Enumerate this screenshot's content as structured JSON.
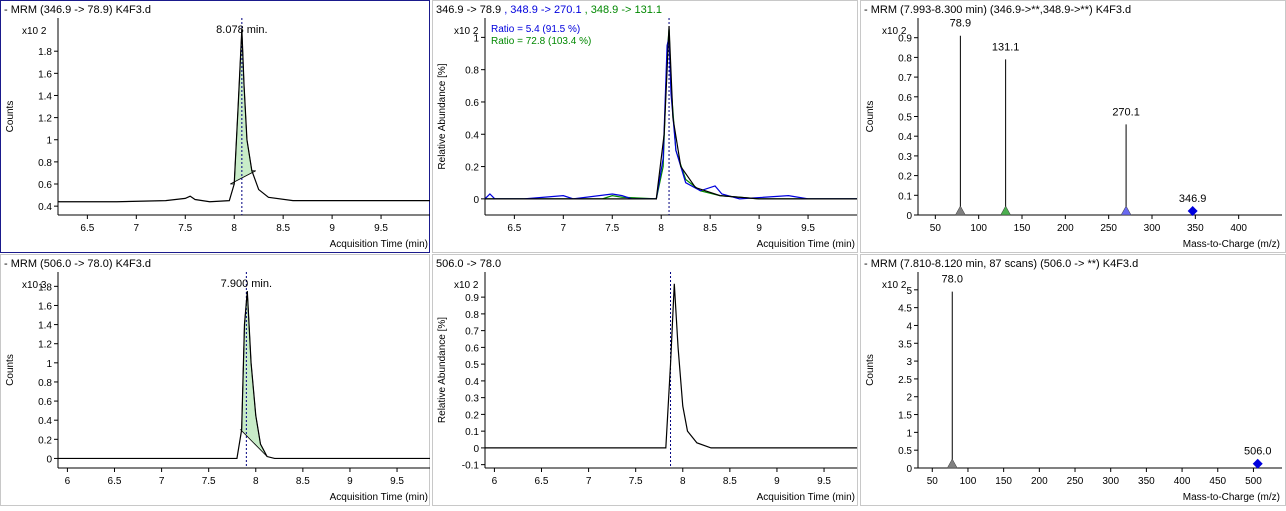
{
  "chart_data": [
    {
      "type": "line",
      "title": "- MRM (346.9 -> 78.9) K4F3.d",
      "ylabel": "Counts",
      "y_multiplier": "x10 2",
      "xlabel": "Acquisition Time (min)",
      "xlim": [
        6.2,
        10.0
      ],
      "ylim": [
        0.32,
        2.1
      ],
      "xticks": [
        "6.5",
        "7",
        "7.5",
        "8",
        "8.5",
        "9",
        "9.5"
      ],
      "yticks": [
        "0.4",
        "0.6",
        "0.8",
        "1",
        "1.2",
        "1.4",
        "1.6",
        "1.8"
      ],
      "peak_label": "8.078 min.",
      "peak_x": 8.078,
      "integrated_area": {
        "x_start": 7.96,
        "x_end": 8.22,
        "fill": "#c8ecc8"
      },
      "series": [
        {
          "color": "#000000",
          "points": [
            [
              6.2,
              0.44
            ],
            [
              6.8,
              0.44
            ],
            [
              7.3,
              0.45
            ],
            [
              7.5,
              0.47
            ],
            [
              7.55,
              0.49
            ],
            [
              7.6,
              0.46
            ],
            [
              7.75,
              0.44
            ],
            [
              7.95,
              0.45
            ],
            [
              8.0,
              0.6
            ],
            [
              8.04,
              1.3
            ],
            [
              8.078,
              2.0
            ],
            [
              8.1,
              1.5
            ],
            [
              8.13,
              1.0
            ],
            [
              8.18,
              0.72
            ],
            [
              8.25,
              0.55
            ],
            [
              8.35,
              0.48
            ],
            [
              8.6,
              0.45
            ],
            [
              9.2,
              0.45
            ],
            [
              10.0,
              0.45
            ]
          ]
        }
      ]
    },
    {
      "type": "line",
      "title_parts": [
        {
          "text": "346.9 -> 78.9",
          "color": "#000000"
        },
        {
          "text": " , 348.9 -> 270.1",
          "color": "#0000dd"
        },
        {
          "text": " , 348.9 -> 131.1",
          "color": "#008800"
        }
      ],
      "ylabel": "Relative Abundance [%]",
      "y_multiplier": "x10 2",
      "xlabel": "Acquisition Time (min)",
      "xlim": [
        6.2,
        10.0
      ],
      "ylim": [
        -0.1,
        1.12
      ],
      "xticks": [
        "6.5",
        "7",
        "7.5",
        "8",
        "8.5",
        "9",
        "9.5"
      ],
      "yticks": [
        "0",
        "0.2",
        "0.4",
        "0.6",
        "0.8",
        "1"
      ],
      "peak_x": 8.08,
      "annotations": [
        {
          "text": "Ratio = 5.4 (91.5 %)",
          "color": "#0000dd"
        },
        {
          "text": "Ratio = 72.8 (103.4 %)",
          "color": "#008800"
        }
      ],
      "series": [
        {
          "color": "#008800",
          "points": [
            [
              6.2,
              0.0
            ],
            [
              7.4,
              0.0
            ],
            [
              7.5,
              0.02
            ],
            [
              7.6,
              0.01
            ],
            [
              7.95,
              0.0
            ],
            [
              8.02,
              0.2
            ],
            [
              8.06,
              0.9
            ],
            [
              8.08,
              1.05
            ],
            [
              8.1,
              0.7
            ],
            [
              8.15,
              0.3
            ],
            [
              8.25,
              0.12
            ],
            [
              8.4,
              0.05
            ],
            [
              8.6,
              0.02
            ],
            [
              9.0,
              0.0
            ],
            [
              10.0,
              0.0
            ]
          ]
        },
        {
          "color": "#0000dd",
          "points": [
            [
              6.2,
              0.0
            ],
            [
              6.25,
              0.03
            ],
            [
              6.3,
              0.0
            ],
            [
              6.6,
              0.0
            ],
            [
              7.0,
              0.02
            ],
            [
              7.1,
              0.0
            ],
            [
              7.5,
              0.03
            ],
            [
              7.6,
              0.02
            ],
            [
              7.7,
              0.0
            ],
            [
              7.95,
              0.0
            ],
            [
              8.02,
              0.25
            ],
            [
              8.06,
              0.95
            ],
            [
              8.08,
              1.0
            ],
            [
              8.1,
              0.65
            ],
            [
              8.15,
              0.3
            ],
            [
              8.25,
              0.1
            ],
            [
              8.4,
              0.05
            ],
            [
              8.55,
              0.08
            ],
            [
              8.62,
              0.03
            ],
            [
              8.8,
              0.0
            ],
            [
              9.3,
              0.02
            ],
            [
              9.5,
              0.0
            ],
            [
              10.0,
              0.0
            ]
          ]
        },
        {
          "color": "#000000",
          "points": [
            [
              6.2,
              0.0
            ],
            [
              7.95,
              0.0
            ],
            [
              8.03,
              0.4
            ],
            [
              8.08,
              1.07
            ],
            [
              8.12,
              0.5
            ],
            [
              8.2,
              0.2
            ],
            [
              8.35,
              0.07
            ],
            [
              8.6,
              0.02
            ],
            [
              9.0,
              0.0
            ],
            [
              10.0,
              0.0
            ]
          ]
        }
      ]
    },
    {
      "type": "stem",
      "title": "- MRM (7.993-8.300 min) (346.9->**,348.9->**) K4F3.d",
      "ylabel": "Counts",
      "y_multiplier": "x10 2",
      "xlabel": "Mass-to-Charge (m/z)",
      "xlim": [
        30,
        450
      ],
      "ylim": [
        0,
        1.0
      ],
      "xticks": [
        "50",
        "100",
        "150",
        "200",
        "250",
        "300",
        "350",
        "400"
      ],
      "yticks": [
        "0",
        "0.1",
        "0.2",
        "0.3",
        "0.4",
        "0.5",
        "0.6",
        "0.7",
        "0.8",
        "0.9"
      ],
      "peaks": [
        {
          "mz": 78.9,
          "label": "78.9",
          "value": 0.91,
          "marker": "triangle",
          "color": "#808080"
        },
        {
          "mz": 131.1,
          "label": "131.1",
          "value": 0.79,
          "marker": "triangle",
          "color": "#4caf50"
        },
        {
          "mz": 270.1,
          "label": "270.1",
          "value": 0.46,
          "marker": "triangle",
          "color": "#6a6af0"
        },
        {
          "mz": 346.9,
          "label": "346.9",
          "value": 0.02,
          "marker": "diamond",
          "color": "#0000dd"
        }
      ]
    },
    {
      "type": "line",
      "title": "- MRM (506.0 -> 78.0) K4F3.d",
      "ylabel": "Counts",
      "y_multiplier": "x10 3",
      "xlabel": "Acquisition Time (min)",
      "xlim": [
        5.9,
        9.85
      ],
      "ylim": [
        -0.1,
        1.95
      ],
      "xticks": [
        "6",
        "6.5",
        "7",
        "7.5",
        "8",
        "8.5",
        "9",
        "9.5"
      ],
      "yticks": [
        "0",
        "0.2",
        "0.4",
        "0.6",
        "0.8",
        "1",
        "1.2",
        "1.4",
        "1.6",
        "1.8"
      ],
      "peak_label": "7.900 min.",
      "peak_x": 7.9,
      "integrated_area": {
        "x_start": 7.84,
        "x_end": 8.12,
        "fill": "#c8ecc8"
      },
      "series": [
        {
          "color": "#000000",
          "points": [
            [
              5.9,
              0.0
            ],
            [
              7.8,
              0.0
            ],
            [
              7.85,
              0.3
            ],
            [
              7.88,
              1.4
            ],
            [
              7.91,
              1.75
            ],
            [
              7.95,
              1.0
            ],
            [
              8.0,
              0.45
            ],
            [
              8.05,
              0.15
            ],
            [
              8.12,
              0.02
            ],
            [
              8.2,
              0.0
            ],
            [
              9.85,
              0.0
            ]
          ]
        }
      ]
    },
    {
      "type": "line",
      "title": "506.0 -> 78.0",
      "ylabel": "Relative Abundance [%]",
      "y_multiplier": "x10 2",
      "xlabel": "Acquisition Time (min)",
      "xlim": [
        5.9,
        9.85
      ],
      "ylim": [
        -0.12,
        1.05
      ],
      "xticks": [
        "6",
        "6.5",
        "7",
        "7.5",
        "8",
        "8.5",
        "9",
        "9.5"
      ],
      "yticks": [
        "-0.1",
        "0",
        "0.1",
        "0.2",
        "0.3",
        "0.4",
        "0.5",
        "0.6",
        "0.7",
        "0.8",
        "0.9"
      ],
      "peak_x": 7.87,
      "series": [
        {
          "color": "#000000",
          "points": [
            [
              5.9,
              0.0
            ],
            [
              7.82,
              0.0
            ],
            [
              7.87,
              0.5
            ],
            [
              7.91,
              0.98
            ],
            [
              7.95,
              0.6
            ],
            [
              8.0,
              0.25
            ],
            [
              8.05,
              0.1
            ],
            [
              8.15,
              0.03
            ],
            [
              8.3,
              0.0
            ],
            [
              9.85,
              0.0
            ]
          ]
        }
      ]
    },
    {
      "type": "stem",
      "title": "- MRM (7.810-8.120 min, 87 scans) (506.0 -> **) K4F3.d",
      "ylabel": "Counts",
      "y_multiplier": "x10 2",
      "xlabel": "Mass-to-Charge (m/z)",
      "xlim": [
        30,
        540
      ],
      "ylim": [
        0,
        5.5
      ],
      "xticks": [
        "50",
        "100",
        "150",
        "200",
        "250",
        "300",
        "350",
        "400",
        "450",
        "500"
      ],
      "yticks": [
        "0",
        "0.5",
        "1",
        "1.5",
        "2",
        "2.5",
        "3",
        "3.5",
        "4",
        "4.5",
        "5"
      ],
      "peaks": [
        {
          "mz": 78.0,
          "label": "78.0",
          "value": 4.95,
          "marker": "triangle",
          "color": "#808080"
        },
        {
          "mz": 506.0,
          "label": "506.0",
          "value": 0.12,
          "marker": "diamond",
          "color": "#0000dd"
        }
      ]
    }
  ]
}
